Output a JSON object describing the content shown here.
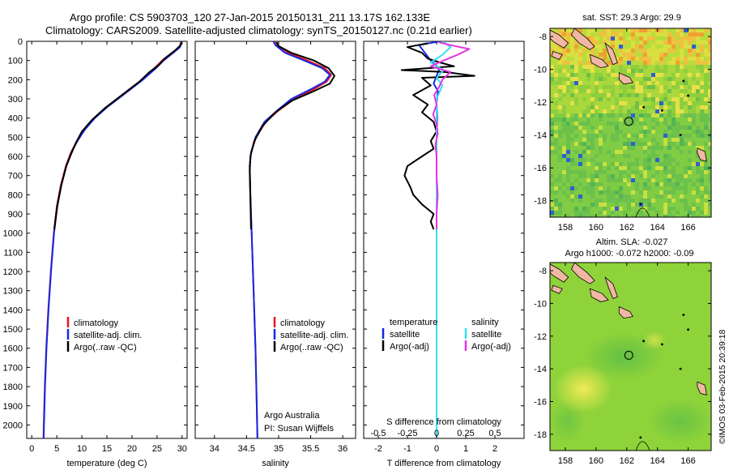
{
  "header": {
    "line1": "Argo profile: CS 5903703_120 27-Jan-2015 20150131_211 13.17S 162.133E",
    "line2": "Climatology: CARS2009. Satellite-adjusted climatology: synTS_20150127.nc (0.21d earlier)"
  },
  "credit": "©IMOS 03-Feb-2015 20:39:18",
  "colors": {
    "climatology": "#e8141e",
    "satellite": "#1428e6",
    "argo": "#000000",
    "sal_satellite": "#34e0ef",
    "sal_argo": "#e632e0",
    "land": "#f0b8a4"
  },
  "chart_data": [
    {
      "type": "line",
      "panel": "temperature",
      "xlabel": "temperature (deg C)",
      "ylabel": "",
      "xlim": [
        -1,
        31
      ],
      "ylim": [
        2070,
        0
      ],
      "xticks": [
        0,
        5,
        10,
        15,
        20,
        25,
        30
      ],
      "yticks": [
        0,
        100,
        200,
        300,
        400,
        500,
        600,
        700,
        800,
        900,
        1000,
        1100,
        1200,
        1300,
        1400,
        1500,
        1600,
        1700,
        1800,
        1900,
        2000
      ],
      "legend": {
        "placement": "lower-middle",
        "entries": [
          "climatology",
          "satellite-adj. clim.",
          "Argo(..raw -QC)"
        ]
      },
      "series": [
        {
          "name": "climatology",
          "color": "#e8141e",
          "points": [
            [
              29.8,
              0
            ],
            [
              29.5,
              30
            ],
            [
              28.0,
              60
            ],
            [
              26.0,
              100
            ],
            [
              24.5,
              140
            ],
            [
              22.0,
              200
            ],
            [
              18.0,
              280
            ],
            [
              15.0,
              340
            ],
            [
              12.5,
              400
            ],
            [
              10.5,
              460
            ],
            [
              9.0,
              520
            ],
            [
              7.8,
              580
            ],
            [
              6.8,
              650
            ],
            [
              5.8,
              750
            ],
            [
              5.0,
              860
            ],
            [
              4.4,
              1000
            ],
            [
              3.8,
              1200
            ],
            [
              3.3,
              1400
            ],
            [
              2.9,
              1600
            ],
            [
              2.6,
              1800
            ],
            [
              2.4,
              2000
            ],
            [
              2.35,
              2070
            ]
          ]
        },
        {
          "name": "satellite-adj. clim.",
          "color": "#1428e6",
          "points": [
            [
              29.9,
              0
            ],
            [
              29.6,
              30
            ],
            [
              28.2,
              60
            ],
            [
              26.3,
              100
            ],
            [
              24.8,
              140
            ],
            [
              22.2,
              200
            ],
            [
              18.2,
              280
            ],
            [
              15.2,
              340
            ],
            [
              12.6,
              400
            ],
            [
              10.6,
              460
            ],
            [
              9.1,
              520
            ],
            [
              7.9,
              580
            ],
            [
              6.9,
              650
            ],
            [
              5.9,
              750
            ],
            [
              5.1,
              860
            ],
            [
              4.45,
              1000
            ],
            [
              3.85,
              1200
            ],
            [
              3.35,
              1400
            ],
            [
              2.95,
              1600
            ],
            [
              2.65,
              1800
            ],
            [
              2.45,
              2000
            ],
            [
              2.4,
              2070
            ]
          ]
        },
        {
          "name": "Argo(..raw -QC)",
          "color": "#000000",
          "points": [
            [
              29.9,
              5
            ],
            [
              29.7,
              20
            ],
            [
              28.5,
              50
            ],
            [
              26.5,
              90
            ],
            [
              25.5,
              120
            ],
            [
              23.5,
              160
            ],
            [
              21.5,
              210
            ],
            [
              18.0,
              280
            ],
            [
              14.5,
              350
            ],
            [
              12.0,
              410
            ],
            [
              10.0,
              470
            ],
            [
              8.8,
              530
            ],
            [
              7.8,
              590
            ],
            [
              6.9,
              650
            ],
            [
              5.9,
              750
            ],
            [
              5.1,
              860
            ],
            [
              4.5,
              980
            ]
          ]
        }
      ]
    },
    {
      "type": "line",
      "panel": "salinity",
      "xlabel": "salinity",
      "ylabel": "",
      "xlim": [
        33.7,
        36.2
      ],
      "ylim": [
        2070,
        0
      ],
      "xticks": [
        34,
        34.5,
        35,
        35.5,
        36
      ],
      "legend": {
        "placement": "lower-middle",
        "entries": [
          "climatology",
          "satellite-adj. clim.",
          "Argo(..raw -QC)"
        ]
      },
      "annotations": [
        "Argo Australia",
        "PI: Susan Wijffels"
      ],
      "series": [
        {
          "name": "climatology",
          "color": "#e8141e",
          "points": [
            [
              34.95,
              0
            ],
            [
              34.98,
              20
            ],
            [
              35.15,
              60
            ],
            [
              35.45,
              100
            ],
            [
              35.72,
              140
            ],
            [
              35.82,
              175
            ],
            [
              35.75,
              210
            ],
            [
              35.55,
              250
            ],
            [
              35.25,
              300
            ],
            [
              35.0,
              360
            ],
            [
              34.8,
              420
            ],
            [
              34.65,
              500
            ],
            [
              34.57,
              580
            ],
            [
              34.55,
              650
            ],
            [
              34.56,
              800
            ],
            [
              34.58,
              1000
            ],
            [
              34.61,
              1300
            ],
            [
              34.64,
              1600
            ],
            [
              34.66,
              1900
            ],
            [
              34.67,
              2070
            ]
          ]
        },
        {
          "name": "satellite-adj. clim.",
          "color": "#1428e6",
          "points": [
            [
              34.92,
              0
            ],
            [
              34.95,
              20
            ],
            [
              35.1,
              60
            ],
            [
              35.4,
              100
            ],
            [
              35.68,
              140
            ],
            [
              35.8,
              175
            ],
            [
              35.72,
              210
            ],
            [
              35.5,
              250
            ],
            [
              35.2,
              300
            ],
            [
              34.98,
              360
            ],
            [
              34.78,
              420
            ],
            [
              34.64,
              500
            ],
            [
              34.57,
              580
            ],
            [
              34.55,
              650
            ],
            [
              34.56,
              800
            ],
            [
              34.58,
              1000
            ],
            [
              34.61,
              1300
            ],
            [
              34.64,
              1600
            ],
            [
              34.66,
              1900
            ],
            [
              34.67,
              2070
            ]
          ]
        },
        {
          "name": "Argo(..raw -QC)",
          "color": "#000000",
          "points": [
            [
              34.97,
              5
            ],
            [
              35.0,
              25
            ],
            [
              35.2,
              60
            ],
            [
              35.55,
              100
            ],
            [
              35.78,
              140
            ],
            [
              35.87,
              180
            ],
            [
              35.8,
              220
            ],
            [
              35.55,
              260
            ],
            [
              35.2,
              310
            ],
            [
              34.95,
              370
            ],
            [
              34.75,
              440
            ],
            [
              34.62,
              520
            ],
            [
              34.56,
              600
            ],
            [
              34.55,
              680
            ],
            [
              34.56,
              820
            ],
            [
              34.57,
              980
            ]
          ]
        }
      ]
    },
    {
      "type": "line",
      "panel": "difference",
      "xlabel": "T difference from climatology",
      "x2label": "S difference from climatology",
      "ylabel": "",
      "xlim": [
        -2.5,
        3
      ],
      "x2lim": [
        -0.625,
        0.75
      ],
      "ylim": [
        2070,
        0
      ],
      "xticks": [
        -2,
        -1,
        0,
        1,
        2
      ],
      "x2ticks": [
        "-0.5",
        "-0.25",
        "0",
        "0.25",
        "0.5"
      ],
      "legend": {
        "placement": "lower-middle",
        "headers": [
          "temperature",
          "salinity"
        ],
        "entries": [
          "satellite",
          "Argo(-adj)",
          "satellite",
          "Argo(-adj)"
        ]
      },
      "series": [
        {
          "name": "satellite",
          "quantity": "temperature",
          "color": "#1428e6",
          "points": [
            [
              0.1,
              0
            ],
            [
              -0.6,
              20
            ],
            [
              -0.4,
              60
            ],
            [
              -0.2,
              100
            ],
            [
              0.1,
              140
            ],
            [
              0.0,
              180
            ],
            [
              -0.1,
              220
            ],
            [
              0.05,
              260
            ],
            [
              0.0,
              320
            ],
            [
              0.02,
              400
            ],
            [
              0.0,
              500
            ],
            [
              0.0,
              700
            ],
            [
              0.0,
              1000
            ],
            [
              0.0,
              1500
            ],
            [
              0.0,
              2070
            ]
          ]
        },
        {
          "name": "Argo(-adj)",
          "quantity": "temperature",
          "color": "#000000",
          "points": [
            [
              -0.3,
              10
            ],
            [
              -1.0,
              30
            ],
            [
              -0.5,
              60
            ],
            [
              -0.3,
              90
            ],
            [
              0.1,
              110
            ],
            [
              0.6,
              130
            ],
            [
              -1.2,
              150
            ],
            [
              0.3,
              160
            ],
            [
              1.3,
              180
            ],
            [
              -0.5,
              190
            ],
            [
              -0.2,
              230
            ],
            [
              -0.8,
              280
            ],
            [
              -0.3,
              330
            ],
            [
              -0.5,
              370
            ],
            [
              -0.1,
              420
            ],
            [
              0.0,
              470
            ],
            [
              -0.2,
              520
            ],
            [
              -0.1,
              560
            ],
            [
              -0.5,
              600
            ],
            [
              -1.0,
              650
            ],
            [
              -1.1,
              700
            ],
            [
              -0.9,
              760
            ],
            [
              -0.8,
              800
            ],
            [
              -0.5,
              850
            ],
            [
              -0.1,
              900
            ],
            [
              -0.2,
              940
            ],
            [
              -0.1,
              980
            ]
          ]
        },
        {
          "name": "satellite",
          "quantity": "salinity",
          "color": "#34e0ef",
          "points": [
            [
              0.05,
              0
            ],
            [
              0.12,
              30
            ],
            [
              0.05,
              70
            ],
            [
              -0.05,
              110
            ],
            [
              0.06,
              150
            ],
            [
              0.0,
              190
            ],
            [
              0.05,
              230
            ],
            [
              0.0,
              300
            ],
            [
              0.0,
              500
            ],
            [
              0.0,
              800
            ],
            [
              0.0,
              1200
            ],
            [
              0.0,
              2070
            ]
          ]
        },
        {
          "name": "Argo(-adj)",
          "quantity": "salinity",
          "color": "#e632e0",
          "points": [
            [
              0.02,
              5
            ],
            [
              0.12,
              20
            ],
            [
              0.28,
              40
            ],
            [
              0.18,
              70
            ],
            [
              0.06,
              100
            ],
            [
              -0.05,
              130
            ],
            [
              0.12,
              160
            ],
            [
              0.05,
              200
            ],
            [
              0.02,
              240
            ],
            [
              -0.02,
              280
            ],
            [
              0.0,
              330
            ],
            [
              -0.03,
              380
            ],
            [
              0.0,
              430
            ],
            [
              0.01,
              480
            ],
            [
              -0.01,
              540
            ],
            [
              0.0,
              600
            ],
            [
              0.0,
              700
            ],
            [
              0.01,
              800
            ],
            [
              0.0,
              900
            ],
            [
              0.0,
              980
            ]
          ]
        }
      ]
    },
    {
      "type": "heatmap",
      "panel": "sst-map",
      "title": "sat. SST: 29.3 Argo: 29.9",
      "xlim": [
        157,
        167.5
      ],
      "ylim": [
        -19,
        -7.5
      ],
      "xticks": [
        158,
        160,
        162,
        164,
        166
      ],
      "yticks": [
        -8,
        -10,
        -12,
        -14,
        -16,
        -18
      ],
      "marker": {
        "lon": 162.133,
        "lat": -13.17
      }
    },
    {
      "type": "heatmap",
      "panel": "sla-map",
      "title": "Altim. SLA: -0.027",
      "subtitle": "Argo h1000: -0.072 h2000: -0.09",
      "xlim": [
        157,
        167.5
      ],
      "ylim": [
        -19,
        -7.5
      ],
      "xticks": [
        158,
        160,
        162,
        164,
        166
      ],
      "yticks": [
        -8,
        -10,
        -12,
        -14,
        -16,
        -18
      ],
      "marker": {
        "lon": 162.133,
        "lat": -13.17
      }
    }
  ]
}
